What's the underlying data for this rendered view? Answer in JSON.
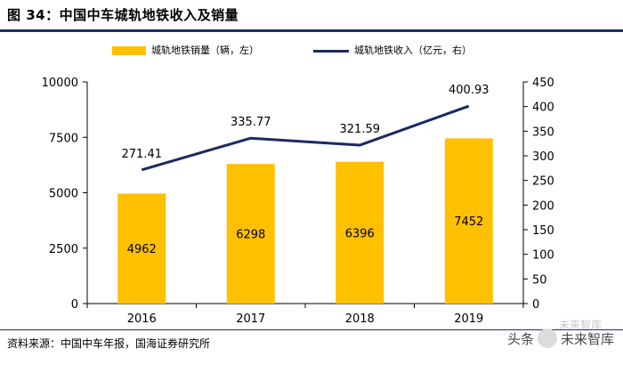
{
  "title": "图 34：中国中车城轨地铁收入及销量",
  "source": "资料来源：中国中车年报，国海证券研究所",
  "watermark": {
    "prefix": "头条",
    "name": "未来智库",
    "faint": "未来智库"
  },
  "colors": {
    "bar": "#FFC000",
    "line": "#1B2A61",
    "rule": "#1a2f66"
  },
  "chart_data": {
    "type": "bar",
    "categories": [
      "2016",
      "2017",
      "2018",
      "2019"
    ],
    "series": [
      {
        "name": "城轨地铁销量（辆，左）",
        "type": "bar",
        "axis": "left",
        "values": [
          4962,
          6298,
          6396,
          7452
        ]
      },
      {
        "name": "城轨地铁收入（亿元，右）",
        "type": "line",
        "axis": "right",
        "values": [
          271.41,
          335.77,
          321.59,
          400.93
        ]
      }
    ],
    "y_left": {
      "ylim": [
        0,
        10000
      ],
      "ticks": [
        "0",
        "2500",
        "5000",
        "7500",
        "10000"
      ]
    },
    "y_right": {
      "ylim": [
        0,
        450
      ],
      "ticks": [
        "0",
        "50",
        "100",
        "150",
        "200",
        "250",
        "300",
        "350",
        "400",
        "450"
      ]
    },
    "data_labels_bar": [
      "4962",
      "6298",
      "6396",
      "7452"
    ],
    "data_labels_line": [
      "271.41",
      "335.77",
      "321.59",
      "400.93"
    ],
    "legend_position": "top-center",
    "grid": false
  }
}
